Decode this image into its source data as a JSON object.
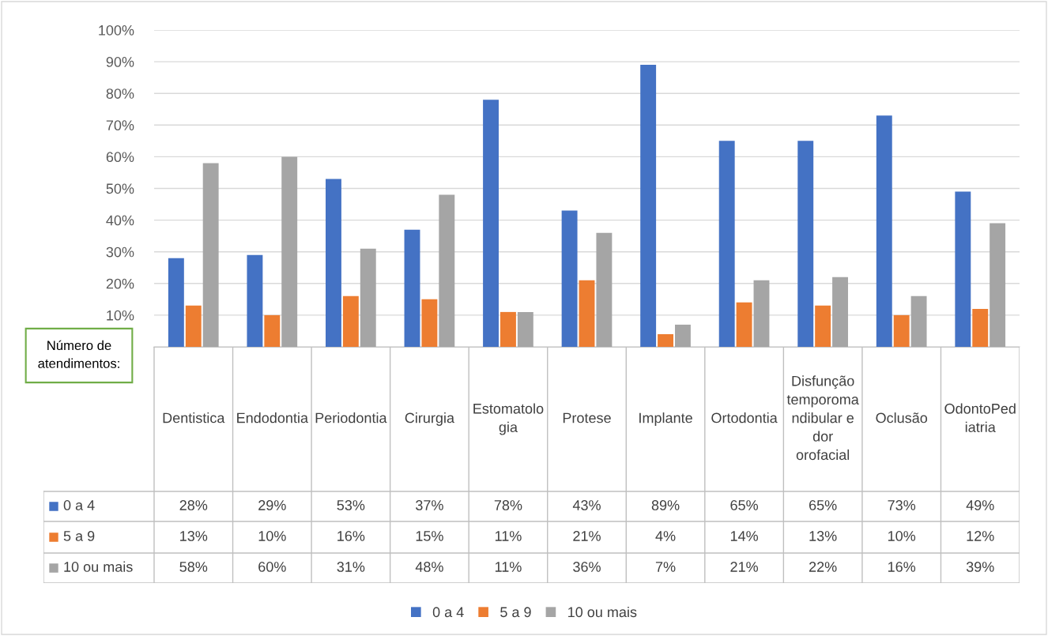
{
  "chart_data": {
    "type": "bar",
    "categories": [
      "Dentistica",
      "Endodontia",
      "Periodontia",
      "Cirurgia",
      "Estomatologia",
      "Protese",
      "Implante",
      "Ortodontia",
      "Disfunção temporomandibular e dor orofacial",
      "Oclusão",
      "OdontoPediatria"
    ],
    "series": [
      {
        "name": "0 a 4",
        "color": "#4472c4",
        "values": [
          28,
          29,
          53,
          37,
          78,
          43,
          89,
          65,
          65,
          73,
          49
        ],
        "value_labels": [
          "28%",
          "29%",
          "53%",
          "37%",
          "78%",
          "43%",
          "89%",
          "65%",
          "65%",
          "73%",
          "49%"
        ]
      },
      {
        "name": "5 a 9",
        "color": "#ed7d31",
        "values": [
          13,
          10,
          16,
          15,
          11,
          21,
          4,
          14,
          13,
          10,
          12
        ],
        "value_labels": [
          "13%",
          "10%",
          "16%",
          "15%",
          "11%",
          "21%",
          "4%",
          "14%",
          "13%",
          "10%",
          "12%"
        ]
      },
      {
        "name": "10 ou mais",
        "color": "#a5a5a5",
        "values": [
          58,
          60,
          31,
          48,
          11,
          36,
          7,
          21,
          22,
          16,
          39
        ],
        "value_labels": [
          "58%",
          "60%",
          "31%",
          "48%",
          "11%",
          "36%",
          "7%",
          "21%",
          "22%",
          "16%",
          "39%"
        ]
      }
    ],
    "ylim": [
      0,
      100
    ],
    "yticks": [
      {
        "value": 10,
        "label": "10%"
      },
      {
        "value": 20,
        "label": "20%"
      },
      {
        "value": 30,
        "label": "30%"
      },
      {
        "value": 40,
        "label": "40%"
      },
      {
        "value": 50,
        "label": "50%"
      },
      {
        "value": 60,
        "label": "60%"
      },
      {
        "value": 70,
        "label": "70%"
      },
      {
        "value": 80,
        "label": "80%"
      },
      {
        "value": 90,
        "label": "90%"
      },
      {
        "value": 100,
        "label": "100%"
      }
    ],
    "grid": "y",
    "legend": "bottom",
    "annotations": [
      "Número de\natendimentos:"
    ]
  }
}
